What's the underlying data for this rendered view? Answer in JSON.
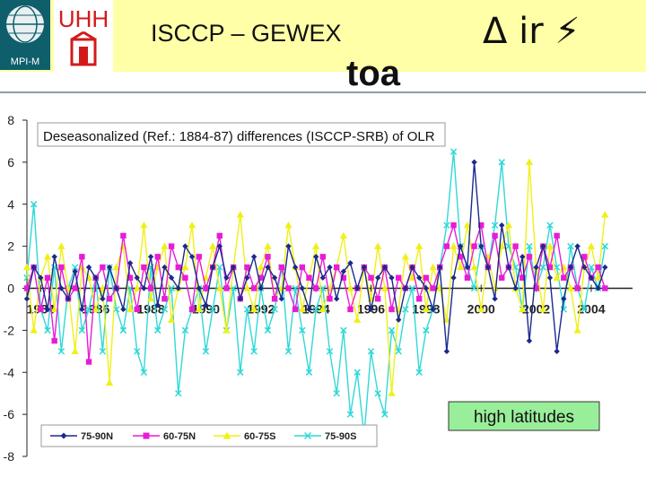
{
  "header": {
    "title": "ISCCP – GEWEX",
    "symbol": "Δ ir ⚡",
    "subtitle": "toa",
    "logo_mpi": "MPI-M",
    "logo_uhh": "UHH"
  },
  "chart_data": {
    "type": "line",
    "title": "Deseasonalized (Ref.: 1884-87) differences (ISCCP-SRB) of OLR",
    "annotation": "high latitudes",
    "ylim": [
      -8,
      8
    ],
    "xlim": [
      1983.5,
      2005.5
    ],
    "y_ticks": [
      "8",
      "6",
      "4",
      "2",
      "0",
      "-2",
      "-4",
      "-6",
      "-8"
    ],
    "x_ticks": [
      "1984",
      "1986",
      "1988",
      "1990",
      "1992",
      "1994",
      "1996",
      "1998",
      "2000",
      "2002",
      "2004"
    ],
    "grid": false,
    "legend_position": "bottom-left",
    "x_start": 1983.5,
    "step": 0.25,
    "series": [
      {
        "name": "75-90N",
        "color": "#1a2a8c",
        "marker": "diamond",
        "values": [
          -0.5,
          1,
          0.5,
          -1,
          1.5,
          0,
          -0.5,
          0.8,
          -1,
          1,
          0.5,
          -0.5,
          1,
          0,
          -1,
          1.2,
          0.5,
          0,
          1.5,
          -0.8,
          1,
          0.5,
          0,
          2,
          1.5,
          0,
          -0.8,
          1,
          2,
          0.5,
          1,
          -0.5,
          0.5,
          1.5,
          0,
          1,
          0.5,
          -0.5,
          2,
          1,
          0,
          -1,
          1.5,
          0.5,
          1,
          -0.5,
          0.8,
          1.2,
          0,
          1,
          -1,
          0.5,
          1,
          0.5,
          -1.5,
          0,
          1,
          0.5,
          0,
          -1,
          1,
          -3,
          0.5,
          2,
          1,
          6,
          2,
          1,
          -0.5,
          3,
          1,
          0,
          1.5,
          -2.5,
          1,
          2,
          0.5,
          -3,
          -0.5,
          1,
          2,
          1,
          0.5,
          0,
          1
        ]
      },
      {
        "name": "60-75N",
        "color": "#e81cd6",
        "marker": "square",
        "values": [
          0,
          1,
          -1,
          0.5,
          -2.5,
          1,
          -0.5,
          0,
          1.5,
          -3.5,
          0.5,
          1,
          -0.5,
          0,
          2.5,
          0.5,
          -1,
          1,
          0,
          1.5,
          -0.5,
          2,
          1,
          0.5,
          -1,
          1.5,
          0,
          1,
          2.5,
          0,
          1,
          -0.5,
          1,
          0,
          0.5,
          1.5,
          -0.5,
          1,
          0,
          -1,
          1,
          0.5,
          0,
          1.5,
          -0.5,
          1,
          0.5,
          -1,
          0,
          1,
          0.5,
          -0.5,
          1,
          -1,
          0.5,
          0,
          1,
          -0.5,
          0.5,
          0,
          1,
          2,
          3,
          1.5,
          0.5,
          2,
          3,
          1,
          2.5,
          0.5,
          1,
          2,
          0.5,
          1.5,
          0,
          2,
          1,
          2.5,
          0.5,
          1,
          0,
          1.5,
          0.5,
          1,
          0
        ]
      },
      {
        "name": "60-75S",
        "color": "#f0f018",
        "marker": "triangle",
        "values": [
          1,
          -2,
          0.5,
          1.5,
          -1,
          2,
          0,
          -3,
          1,
          0.5,
          -1,
          0,
          -4.5,
          1,
          2,
          -1,
          0,
          3,
          -0.5,
          1,
          2,
          -1.5,
          0,
          1,
          3,
          -1,
          0.5,
          2,
          0,
          -2,
          1,
          3.5,
          0,
          -1,
          1,
          2,
          -0.5,
          0,
          3,
          1,
          -1,
          0.5,
          2,
          -1,
          0,
          1,
          2.5,
          0,
          -1.5,
          1,
          -0.5,
          2,
          0,
          -5,
          -1,
          1.5,
          0.5,
          2,
          -1,
          1,
          0,
          -1.5,
          2,
          1,
          3,
          1,
          -1,
          1.5,
          0,
          2,
          3,
          0,
          -1,
          6,
          1,
          -1,
          2,
          0.5,
          1,
          0,
          -2,
          1,
          2,
          0.5,
          3.5
        ]
      },
      {
        "name": "75-90S",
        "color": "#30d8d8",
        "marker": "cross",
        "values": [
          0.5,
          4,
          -1,
          -2,
          1,
          -3,
          0,
          1,
          -2,
          -1,
          0.5,
          -3,
          1,
          -1,
          -2,
          0,
          -3,
          -4,
          1,
          -2,
          -1,
          0,
          -5,
          -2,
          -1,
          0,
          -3,
          -1,
          1,
          -2,
          0,
          -4,
          -1,
          -3,
          0,
          -2,
          -1,
          1,
          -3,
          0,
          -2,
          -4,
          -1,
          0,
          -3,
          -5,
          -2,
          -6,
          -4,
          -7,
          -3,
          -5,
          -6,
          -2,
          -3,
          -1,
          0,
          -4,
          -2,
          -1,
          1,
          3,
          6.5,
          2,
          1,
          0,
          2,
          1,
          3,
          6,
          2,
          1,
          -1,
          2,
          0,
          1,
          3,
          1,
          -1,
          2,
          0,
          -1,
          1,
          0,
          2
        ]
      }
    ]
  }
}
